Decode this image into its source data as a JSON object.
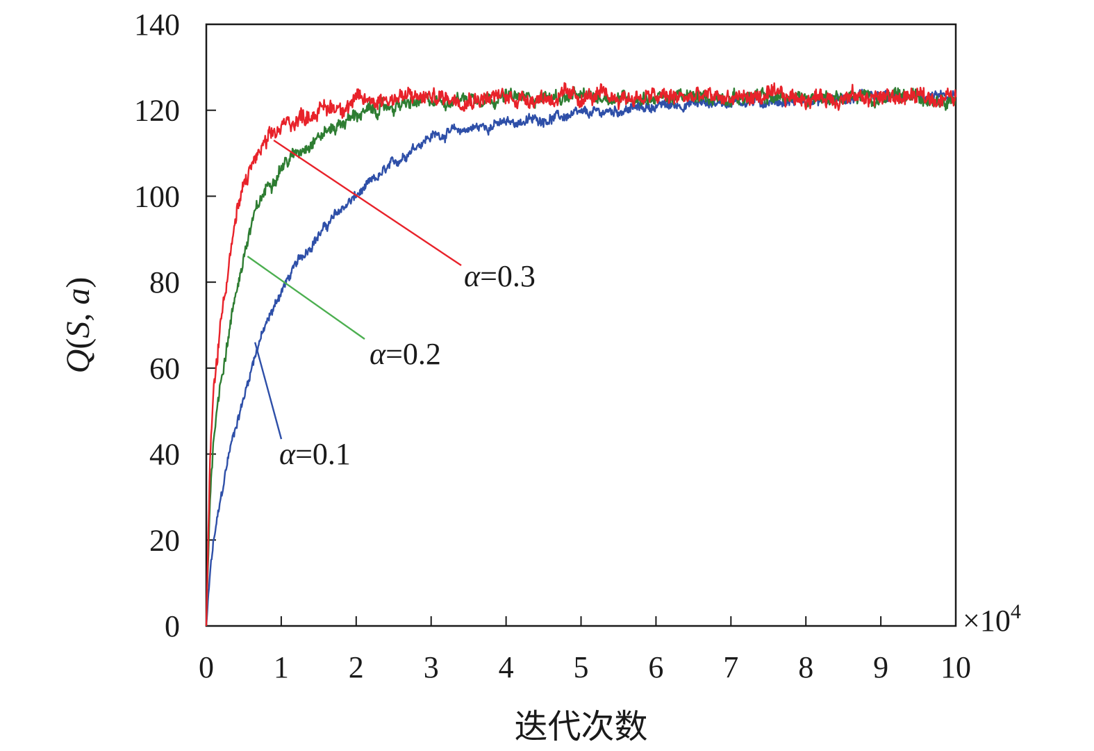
{
  "chart_data": {
    "type": "line",
    "title": "",
    "xlabel": "迭代次数",
    "ylabel": {
      "q": "Q",
      "open": "(",
      "s": "S",
      "comma": ", ",
      "a": "a",
      "close": ")"
    },
    "x_multiplier": {
      "base": "×10",
      "exp": "4"
    },
    "xlim": [
      0,
      10
    ],
    "ylim": [
      0,
      140
    ],
    "xticks": [
      "0",
      "1",
      "2",
      "3",
      "4",
      "5",
      "6",
      "7",
      "8",
      "9",
      "10"
    ],
    "yticks": [
      "0",
      "20",
      "40",
      "60",
      "80",
      "100",
      "120",
      "140"
    ],
    "grid": false,
    "legend": "none",
    "series": [
      {
        "name": "α=0.1",
        "color": "#2e4fa8",
        "x": [
          0,
          0.05,
          0.1,
          0.2,
          0.3,
          0.4,
          0.5,
          0.6,
          0.7,
          0.8,
          1.0,
          1.2,
          1.4,
          1.6,
          1.8,
          2.0,
          2.2,
          2.4,
          2.6,
          2.8,
          3.0,
          3.3,
          3.6,
          4.0,
          4.5,
          5.0,
          5.5,
          6.0,
          7.0,
          8.0,
          9.0,
          10.0
        ],
        "values": [
          0,
          12,
          20,
          30,
          40,
          47,
          53,
          60,
          66,
          70,
          78,
          84,
          89,
          93,
          97,
          100,
          103,
          106,
          109,
          112,
          114,
          115,
          116,
          117,
          118,
          119,
          120,
          121,
          122,
          122,
          123,
          123
        ]
      },
      {
        "name": "α=0.2",
        "color": "#2e7d32",
        "x": [
          0,
          0.05,
          0.1,
          0.2,
          0.3,
          0.4,
          0.5,
          0.6,
          0.7,
          0.8,
          1.0,
          1.2,
          1.4,
          1.6,
          1.8,
          2.0,
          2.5,
          3.0,
          3.5,
          4.0,
          5.0,
          6.0,
          7.0,
          8.0,
          9.0,
          10.0
        ],
        "values": [
          0,
          30,
          45,
          58,
          68,
          78,
          86,
          93,
          98,
          102,
          107,
          110,
          113,
          115,
          117,
          119,
          121,
          122,
          123,
          123,
          123,
          123,
          123,
          123,
          123,
          123
        ]
      },
      {
        "name": "α=0.3",
        "color": "#e8222a",
        "x": [
          0,
          0.05,
          0.1,
          0.2,
          0.3,
          0.4,
          0.5,
          0.6,
          0.7,
          0.8,
          1.0,
          1.2,
          1.5,
          2.0,
          2.5,
          3.0,
          4.0,
          5.0,
          6.0,
          7.0,
          8.0,
          9.0,
          10.0
        ],
        "values": [
          0,
          38,
          55,
          72,
          85,
          95,
          102,
          107,
          110,
          112,
          116,
          118,
          120,
          122,
          123,
          123,
          123,
          123,
          123,
          123,
          123,
          123,
          123
        ]
      }
    ],
    "annotations": [
      {
        "text": "α=0.1",
        "series": "α=0.1",
        "x": 0.65,
        "y": 66
      },
      {
        "text": "α=0.2",
        "series": "α=0.2",
        "x": 0.55,
        "y": 86
      },
      {
        "text": "α=0.3",
        "series": "α=0.3",
        "x": 0.9,
        "y": 113
      }
    ],
    "noise": [
      0.6,
      0.8,
      1.0
    ]
  }
}
